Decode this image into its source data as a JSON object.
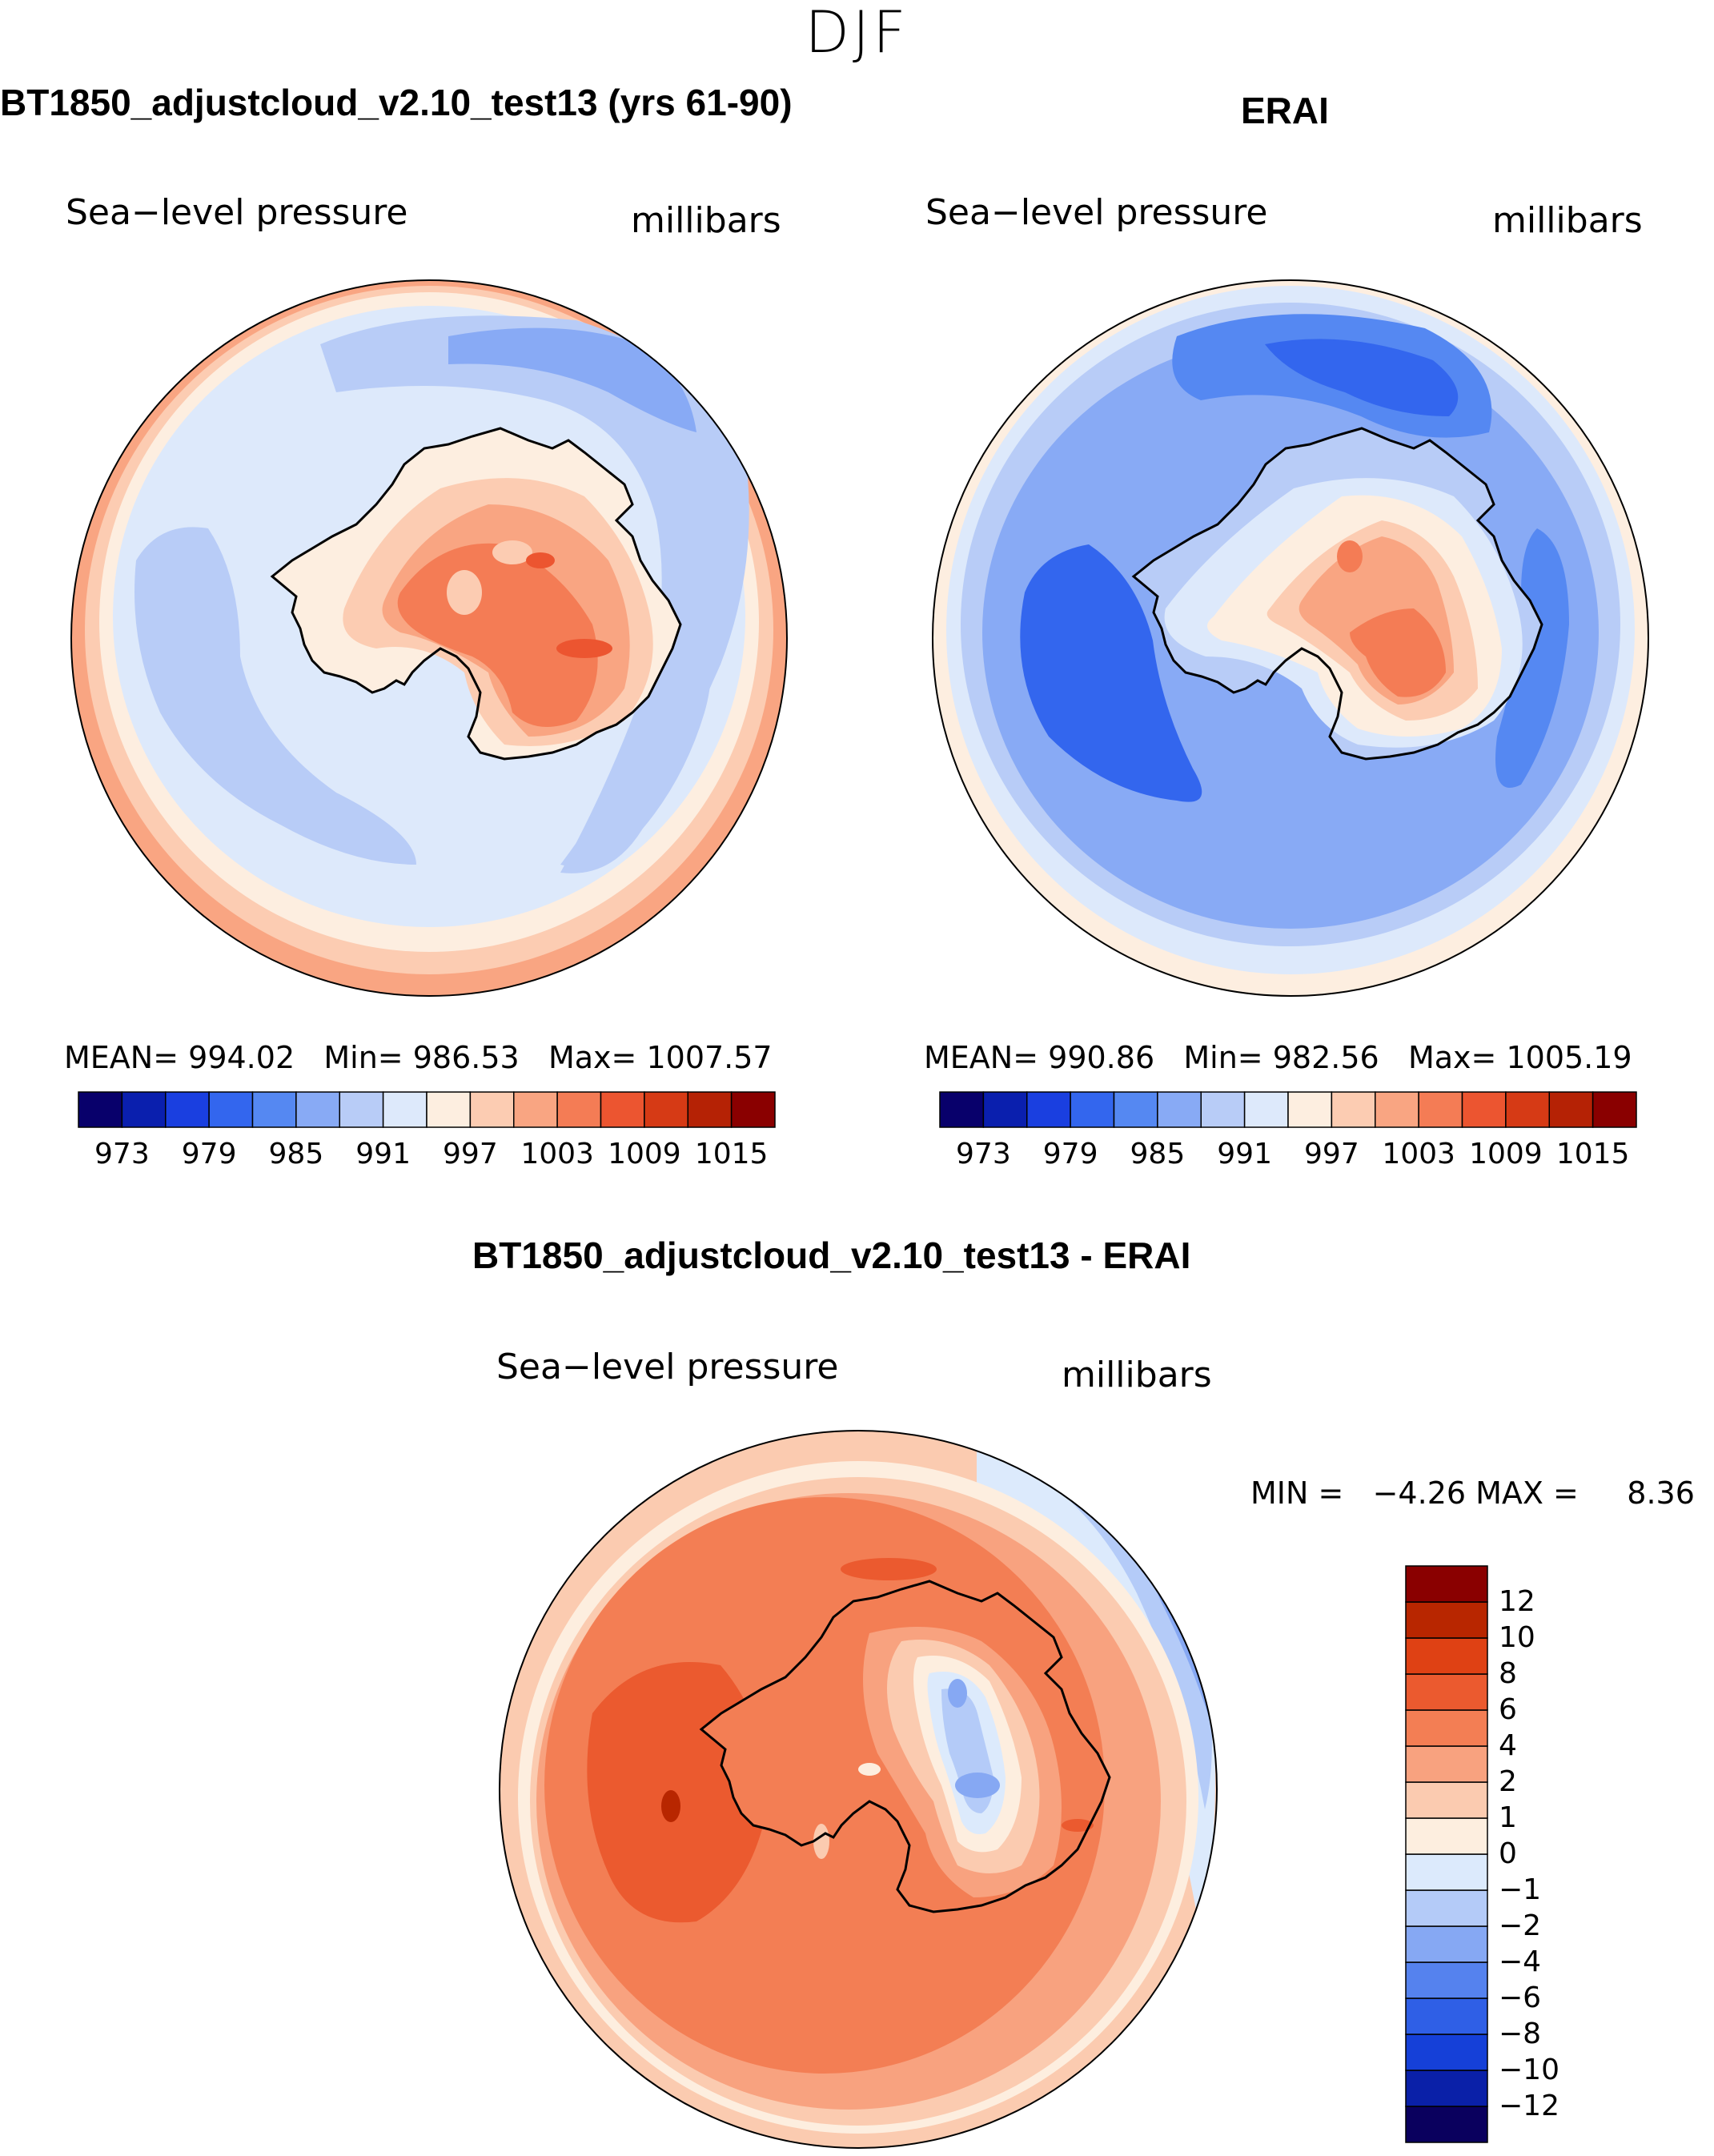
{
  "season": "DJF",
  "panels": [
    {
      "title": "BT1850_adjustcloud_v2.10_test13 (yrs 61-90)",
      "variable": "Sea−level pressure",
      "units": "millibars",
      "stats": {
        "mean_label": "MEAN=",
        "mean": "994.02",
        "min_label": "Min=",
        "min": "986.53",
        "max_label": "Max=",
        "max": "1007.57"
      }
    },
    {
      "title": "ERAI",
      "variable": "Sea−level pressure",
      "units": "millibars",
      "stats": {
        "mean_label": "MEAN=",
        "mean": "990.86",
        "min_label": "Min=",
        "min": "982.56",
        "max_label": "Max=",
        "max": "1005.19"
      }
    },
    {
      "title": "BT1850_adjustcloud_v2.10_test13 - ERAI",
      "variable": "Sea−level pressure",
      "units": "millibars",
      "stats": {
        "min_label": "MIN =",
        "min": "−4.26",
        "max_label": "MAX =",
        "max": "8.36"
      }
    }
  ],
  "abs_colorbar": {
    "colors": [
      "#08006b",
      "#0a1fae",
      "#1a3fe0",
      "#3366ee",
      "#5588f2",
      "#88aaf5",
      "#b8ccf7",
      "#dde9fb",
      "#fdeee0",
      "#fcccb2",
      "#f9a582",
      "#f47c55",
      "#ec5530",
      "#d63a15",
      "#b52205",
      "#8a0000"
    ],
    "tick_labels": [
      "973",
      "979",
      "985",
      "991",
      "997",
      "1003",
      "1009",
      "1015"
    ]
  },
  "diff_colorbar": {
    "colors": [
      "#0a005e",
      "#0a20a8",
      "#1540d8",
      "#2f5fe6",
      "#5582ee",
      "#86a8f3",
      "#b4cbf8",
      "#dceafc",
      "#fdeedf",
      "#fbcbb0",
      "#f8a27f",
      "#f37e54",
      "#eb5a2f",
      "#df4114",
      "#b82600",
      "#8a0000"
    ],
    "tick_labels": [
      "−12",
      "−10",
      "−8",
      "−6",
      "−4",
      "−2",
      "−1",
      "0",
      "1",
      "2",
      "4",
      "6",
      "8",
      "10",
      "12"
    ]
  },
  "chart_data": [
    {
      "type": "heatmap",
      "title": "BT1850_adjustcloud_v2.10_test13 (yrs 61-90)",
      "variable": "Sea−level pressure",
      "units": "millibars",
      "projection": "south polar stereographic",
      "contour_levels": [
        973,
        976,
        979,
        982,
        985,
        988,
        991,
        994,
        997,
        1000,
        1003,
        1006,
        1009,
        1012,
        1015
      ],
      "mean": 994.02,
      "min": 986.53,
      "max": 1007.57
    },
    {
      "type": "heatmap",
      "title": "ERAI",
      "variable": "Sea−level pressure",
      "units": "millibars",
      "projection": "south polar stereographic",
      "contour_levels": [
        973,
        976,
        979,
        982,
        985,
        988,
        991,
        994,
        997,
        1000,
        1003,
        1006,
        1009,
        1012,
        1015
      ],
      "mean": 990.86,
      "min": 982.56,
      "max": 1005.19
    },
    {
      "type": "heatmap",
      "title": "BT1850_adjustcloud_v2.10_test13 - ERAI",
      "variable": "Sea−level pressure",
      "units": "millibars",
      "projection": "south polar stereographic",
      "contour_levels": [
        -12,
        -10,
        -8,
        -6,
        -4,
        -2,
        -1,
        0,
        1,
        2,
        4,
        6,
        8,
        10,
        12
      ],
      "min": -4.26,
      "max": 8.36
    }
  ]
}
